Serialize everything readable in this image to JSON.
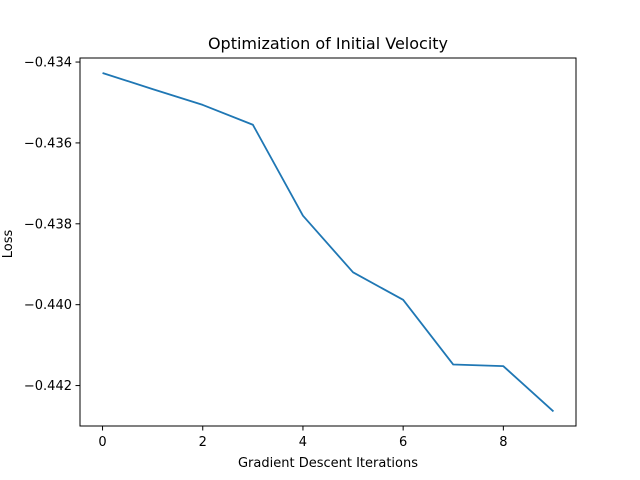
{
  "chart_data": {
    "type": "line",
    "title": "Optimization of Initial Velocity",
    "xlabel": "Gradient Descent Iterations",
    "ylabel": "Loss",
    "xlim": [
      -0.45,
      9.45
    ],
    "ylim": [
      -0.443,
      -0.4339
    ],
    "x_ticks": [
      0,
      2,
      4,
      6,
      8
    ],
    "x_tick_labels": [
      "0",
      "2",
      "4",
      "6",
      "8"
    ],
    "y_ticks": [
      -0.434,
      -0.436,
      -0.438,
      -0.44,
      -0.442
    ],
    "y_tick_labels": [
      "−0.434",
      "−0.436",
      "−0.438",
      "−0.440",
      "−0.442"
    ],
    "grid": false,
    "series": [
      {
        "color": "#1f77b4",
        "x": [
          0,
          1,
          2,
          3,
          4,
          5,
          6,
          7,
          8,
          9
        ],
        "y": [
          -0.43427,
          -0.43467,
          -0.43506,
          -0.43555,
          -0.4378,
          -0.4392,
          -0.43988,
          -0.44148,
          -0.44152,
          -0.44264
        ]
      }
    ]
  }
}
